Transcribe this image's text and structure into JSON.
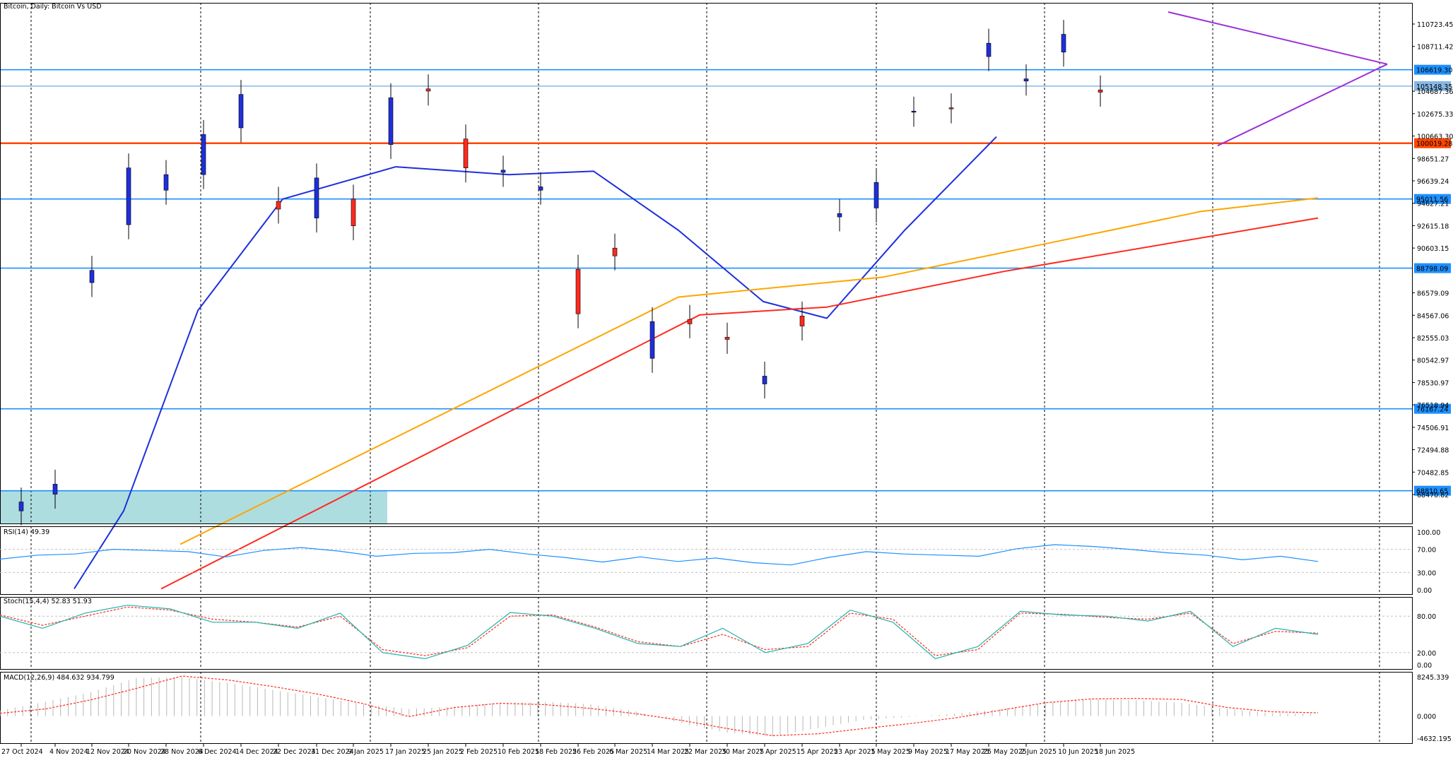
{
  "chart_data": {
    "type": "candlestick",
    "title": "Bitcoin, Daily: Bitcoin Vs USD",
    "main_panel": {
      "ylim": [
        68300,
        111800
      ],
      "y_ticks": [
        "110723.45",
        "108711.42",
        "104687.36",
        "102675.33",
        "100663.30",
        "98651.27",
        "96639.24",
        "94627.21",
        "92615.18",
        "90603.15",
        "86579.09",
        "84567.06",
        "82555.03",
        "80542.97",
        "78530.97",
        "76518.94",
        "74506.91",
        "72494.88",
        "70482.85",
        "68470.82"
      ],
      "x_labels": [
        "27 Oct 2024",
        "4 Nov 2024",
        "12 Nov 2024",
        "20 Nov 2024",
        "28 Nov 2024",
        "6 Dec 2024",
        "14 Dec 2024",
        "22 Dec 2024",
        "31 Dec 2024",
        "9 Jan 2025",
        "17 Jan 2025",
        "25 Jan 2025",
        "2 Feb 2025",
        "10 Feb 2025",
        "18 Feb 2025",
        "26 Feb 2025",
        "6 Mar 2025",
        "14 Mar 2025",
        "22 Mar 2025",
        "30 Mar 2025",
        "7 Apr 2025",
        "15 Apr 2025",
        "23 Apr 2025",
        "1 May 2025",
        "9 May 2025",
        "17 May 2025",
        "25 May 2025",
        "2 Jun 2025",
        "10 Jun 2025",
        "18 Jun 2025"
      ],
      "horizontal_levels": [
        {
          "value": 106619.3,
          "label": "106619.30",
          "color": "#1e90ff"
        },
        {
          "value": 105148.35,
          "label": "105148.35",
          "color": "#87b7e6"
        },
        {
          "value": 100019.28,
          "label": "100019.28",
          "color": "#ff4500"
        },
        {
          "value": 95011.56,
          "label": "95011.56",
          "color": "#1e90ff"
        },
        {
          "value": 88798.09,
          "label": "88798.09",
          "color": "#1e90ff"
        },
        {
          "value": 76167.24,
          "label": "76167.24",
          "color": "#1e90ff"
        },
        {
          "value": 68810.65,
          "label": "68810.65",
          "color": "#1e90ff"
        }
      ],
      "ohlc_points": [
        {
          "date": "27 Oct 2024",
          "open": 67000,
          "close": 67800
        },
        {
          "date": "4 Nov 2024",
          "open": 68500,
          "close": 69400
        },
        {
          "date": "12 Nov 2024",
          "open": 87500,
          "close": 88600
        },
        {
          "date": "20 Nov 2024",
          "open": 92700,
          "close": 97800
        },
        {
          "date": "28 Nov 2024",
          "open": 95800,
          "close": 97200
        },
        {
          "date": "6 Dec 2024",
          "open": 97200,
          "close": 100800
        },
        {
          "date": "14 Dec 2024",
          "open": 101400,
          "close": 104400
        },
        {
          "date": "22 Dec 2024",
          "open": 94800,
          "close": 94100
        },
        {
          "date": "31 Dec 2024",
          "open": 93300,
          "close": 96900
        },
        {
          "date": "9 Jan 2025",
          "open": 95000,
          "close": 92600
        },
        {
          "date": "17 Jan 2025",
          "open": 99900,
          "close": 104100
        },
        {
          "date": "25 Jan 2025",
          "open": 104900,
          "close": 104700
        },
        {
          "date": "2 Feb 2025",
          "open": 100400,
          "close": 97800
        },
        {
          "date": "10 Feb 2025",
          "open": 97400,
          "close": 97600
        },
        {
          "date": "18 Feb 2025",
          "open": 95800,
          "close": 96100
        },
        {
          "date": "26 Feb 2025",
          "open": 88700,
          "close": 84700
        },
        {
          "date": "6 Mar 2025",
          "open": 90600,
          "close": 89900
        },
        {
          "date": "14 Mar 2025",
          "open": 80700,
          "close": 84000
        },
        {
          "date": "22 Mar 2025",
          "open": 84200,
          "close": 83800
        },
        {
          "date": "30 Mar 2025",
          "open": 82600,
          "close": 82400
        },
        {
          "date": "7 Apr 2025",
          "open": 78400,
          "close": 79100
        },
        {
          "date": "15 Apr 2025",
          "open": 84500,
          "close": 83600
        },
        {
          "date": "23 Apr 2025",
          "open": 93400,
          "close": 93700
        },
        {
          "date": "1 May 2025",
          "open": 94200,
          "close": 96500
        },
        {
          "date": "9 May 2025",
          "open": 102800,
          "close": 102900
        },
        {
          "date": "17 May 2025",
          "open": 103200,
          "close": 103100
        },
        {
          "date": "25 May 2025",
          "open": 107800,
          "close": 109000
        },
        {
          "date": "2 Jun 2025",
          "open": 105600,
          "close": 105800
        },
        {
          "date": "10 Jun 2025",
          "open": 108200,
          "close": 109800
        },
        {
          "date": "18 Jun 2025",
          "open": 104800,
          "close": 104600
        }
      ],
      "moving_averages": [
        {
          "color": "#1e2fdc",
          "values_by_label": [
            60000,
            67000,
            85000,
            95000,
            97900,
            97200,
            97500,
            92200,
            85800,
            84300,
            92200,
            100600
          ]
        },
        {
          "color": "#ff2a1f",
          "values_by_label": [
            60000,
            84600,
            85300,
            88500,
            93300
          ]
        },
        {
          "color": "#ffa500",
          "values_by_label": [
            64000,
            86200,
            88000,
            90600,
            93900,
            95100
          ]
        }
      ],
      "triangle_color": "#9b30d9",
      "zone_color": "#aedde0"
    },
    "rsi": {
      "header": "RSI(14) 49.39",
      "ticks": [
        "100.00",
        "70.00",
        "30.00",
        "0.00"
      ],
      "levels": [
        70,
        30
      ],
      "color": "#1e90ff",
      "values": [
        53,
        60,
        62,
        70,
        68,
        66,
        57,
        68,
        73,
        67,
        58,
        63,
        64,
        70,
        62,
        56,
        48,
        57,
        49,
        55,
        47,
        43,
        56,
        66,
        62,
        60,
        58,
        71,
        78,
        75,
        70,
        64,
        60,
        52,
        58,
        49
      ]
    },
    "stochastic": {
      "header": "Stoch(15,4,4) 52.83 51.93",
      "ticks": [
        "80.00",
        "20.00",
        "0.00"
      ],
      "levels": [
        80,
        20
      ],
      "main_color": "#20b2aa",
      "signal_color": "#ff2a1f",
      "main": [
        80,
        60,
        85,
        98,
        92,
        70,
        70,
        60,
        85,
        20,
        10,
        32,
        86,
        80,
        60,
        35,
        30,
        60,
        20,
        35,
        90,
        70,
        10,
        30,
        88,
        82,
        80,
        72,
        88,
        30,
        60,
        50
      ],
      "signal": [
        82,
        65,
        80,
        95,
        90,
        75,
        70,
        62,
        80,
        25,
        15,
        28,
        80,
        82,
        62,
        38,
        30,
        50,
        25,
        30,
        85,
        75,
        15,
        25,
        85,
        83,
        78,
        75,
        85,
        35,
        55,
        52
      ]
    },
    "macd": {
      "header": "MACD(12,26,9) 484.632 934.799",
      "ticks": [
        "8245.339",
        "0.000",
        "-4632.195"
      ],
      "histogram_color": "#b8b8b8",
      "signal_color": "#ff2a1f",
      "histogram": [
        1200,
        3000,
        5000,
        8000,
        8200,
        7000,
        5500,
        4000,
        2500,
        1500,
        2000,
        2800,
        3000,
        2500,
        1000,
        -1500,
        -3500,
        -4200,
        -2500,
        -800,
        -200,
        500,
        1500,
        2800,
        3500,
        3300,
        2800,
        1500,
        600,
        500
      ],
      "signal": [
        600,
        1500,
        3400,
        5800,
        8400,
        7600,
        6200,
        4600,
        2600,
        -100,
        1800,
        2700,
        2400,
        1600,
        500,
        -900,
        -2600,
        -4100,
        -3700,
        -2600,
        -1600,
        -400,
        1200,
        2800,
        3600,
        3700,
        3500,
        1800,
        900,
        700
      ]
    }
  }
}
